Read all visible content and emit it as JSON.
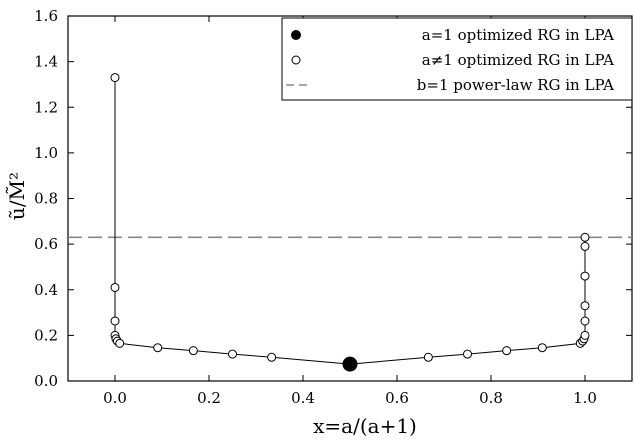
{
  "chart_data": {
    "type": "scatter",
    "title": "",
    "xlabel": "x=a/(a+1)",
    "ylabel": "ũ/M̃²",
    "xlim": [
      -0.1,
      1.1
    ],
    "ylim": [
      0.0,
      1.6
    ],
    "xticks": [
      "0.0",
      "0.2",
      "0.4",
      "0.6",
      "0.8",
      "1.0"
    ],
    "yticks": [
      "0.0",
      "0.2",
      "0.4",
      "0.6",
      "0.8",
      "1.0",
      "1.2",
      "1.4",
      "1.6"
    ],
    "grid": false,
    "legend_position": "top-right",
    "series": [
      {
        "name": "a=1 optimized RG in LPA",
        "marker": "filled-circle",
        "points": [
          [
            0.5,
            0.074
          ]
        ]
      },
      {
        "name": "a≠1 optimized RG in LPA",
        "marker": "open-circle",
        "connected": true,
        "points": [
          [
            0.0,
            1.33
          ],
          [
            0.0,
            0.41
          ],
          [
            0.0,
            0.263
          ],
          [
            0.0,
            0.2
          ],
          [
            0.002,
            0.185
          ],
          [
            0.005,
            0.175
          ],
          [
            0.01,
            0.165
          ],
          [
            0.0909,
            0.146
          ],
          [
            0.1667,
            0.133
          ],
          [
            0.25,
            0.118
          ],
          [
            0.3333,
            0.104
          ],
          [
            0.5,
            0.074
          ],
          [
            0.6667,
            0.104
          ],
          [
            0.75,
            0.118
          ],
          [
            0.8333,
            0.133
          ],
          [
            0.9091,
            0.146
          ],
          [
            0.99,
            0.165
          ],
          [
            0.995,
            0.175
          ],
          [
            0.998,
            0.185
          ],
          [
            1.0,
            0.2
          ],
          [
            1.0,
            0.263
          ],
          [
            1.0,
            0.33
          ],
          [
            1.0,
            0.46
          ],
          [
            1.0,
            0.59
          ],
          [
            1.0,
            0.63
          ]
        ]
      },
      {
        "name": "b=1 power-law RG in LPA",
        "style": "dashed-line",
        "y": 0.63
      }
    ]
  },
  "colors": {
    "ink": "#000000",
    "dashed": "#888888"
  }
}
